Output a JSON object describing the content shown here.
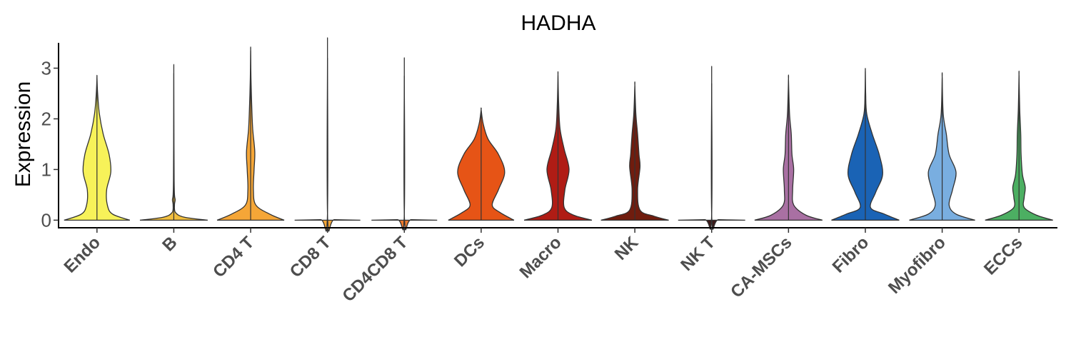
{
  "chart_data": {
    "type": "violin",
    "title": "HADHA",
    "xlabel": "",
    "ylabel": "Expression",
    "ylim": [
      -0.15,
      3.5
    ],
    "yticks": [
      0,
      1,
      2,
      3
    ],
    "grid": false,
    "legend": "none",
    "categories": [
      "Endo",
      "B",
      "CD4 T",
      "CD8 T",
      "CD4CD8 T",
      "DCs",
      "Macro",
      "NK",
      "NK T",
      "CA-MSCs",
      "Fibro",
      "Myofibro",
      "ECCs"
    ],
    "series": [
      {
        "category": "Endo",
        "color": "#f7f259",
        "max": 2.82,
        "density": [
          [
            0,
            0.95
          ],
          [
            0.12,
            0.45
          ],
          [
            0.3,
            0.3
          ],
          [
            0.6,
            0.28
          ],
          [
            0.95,
            0.4
          ],
          [
            1.3,
            0.35
          ],
          [
            1.7,
            0.18
          ],
          [
            2.1,
            0.07
          ],
          [
            2.5,
            0.02
          ],
          [
            2.82,
            0.0
          ]
        ]
      },
      {
        "category": "B",
        "color": "#f2bf3f",
        "max": 2.9,
        "density": [
          [
            0,
            0.98
          ],
          [
            0.06,
            0.3
          ],
          [
            0.15,
            0.05
          ],
          [
            0.3,
            0.02
          ],
          [
            0.4,
            0.04
          ],
          [
            0.5,
            0.02
          ],
          [
            0.8,
            0.01
          ],
          [
            1.5,
            0.005
          ],
          [
            2.9,
            0.0
          ]
        ]
      },
      {
        "category": "CD4 T",
        "color": "#f5a637",
        "max": 3.35,
        "density": [
          [
            0,
            0.97
          ],
          [
            0.12,
            0.55
          ],
          [
            0.3,
            0.15
          ],
          [
            0.6,
            0.08
          ],
          [
            1.0,
            0.1
          ],
          [
            1.35,
            0.12
          ],
          [
            1.8,
            0.06
          ],
          [
            2.3,
            0.03
          ],
          [
            2.8,
            0.01
          ],
          [
            3.35,
            0.0
          ]
        ]
      },
      {
        "category": "CD8 T",
        "color": "#f5a637",
        "max": 3.2,
        "density": [
          [
            0,
            0.95
          ],
          [
            0.01,
            0.2
          ],
          [
            0.02,
            0.005
          ],
          [
            3.2,
            0.0
          ]
        ]
      },
      {
        "category": "CD4CD8 T",
        "color": "#ee7a2c",
        "max": 2.85,
        "density": [
          [
            0,
            0.95
          ],
          [
            0.01,
            0.2
          ],
          [
            0.02,
            0.005
          ],
          [
            2.85,
            0.0
          ]
        ]
      },
      {
        "category": "DCs",
        "color": "#e65416",
        "max": 2.18,
        "density": [
          [
            0,
            0.95
          ],
          [
            0.15,
            0.55
          ],
          [
            0.3,
            0.32
          ],
          [
            0.6,
            0.5
          ],
          [
            0.95,
            0.68
          ],
          [
            1.3,
            0.5
          ],
          [
            1.6,
            0.2
          ],
          [
            1.9,
            0.06
          ],
          [
            2.18,
            0.0
          ]
        ]
      },
      {
        "category": "Macro",
        "color": "#b01c15",
        "max": 2.86,
        "density": [
          [
            0,
            0.98
          ],
          [
            0.1,
            0.45
          ],
          [
            0.25,
            0.18
          ],
          [
            0.6,
            0.2
          ],
          [
            1.0,
            0.32
          ],
          [
            1.4,
            0.18
          ],
          [
            1.8,
            0.06
          ],
          [
            2.3,
            0.02
          ],
          [
            2.86,
            0.0
          ]
        ]
      },
      {
        "category": "NK",
        "color": "#701c0e",
        "max": 2.66,
        "density": [
          [
            0,
            0.98
          ],
          [
            0.08,
            0.55
          ],
          [
            0.2,
            0.15
          ],
          [
            0.6,
            0.08
          ],
          [
            1.05,
            0.15
          ],
          [
            1.3,
            0.12
          ],
          [
            1.7,
            0.08
          ],
          [
            2.1,
            0.03
          ],
          [
            2.66,
            0.0
          ]
        ]
      },
      {
        "category": "NK T",
        "color": "#3d1a1a",
        "max": 2.7,
        "density": [
          [
            0,
            0.97
          ],
          [
            0.01,
            0.2
          ],
          [
            0.02,
            0.005
          ],
          [
            2.7,
            0.0
          ]
        ]
      },
      {
        "category": "CA-MSCs",
        "color": "#a970a3",
        "max": 2.78,
        "density": [
          [
            0,
            0.98
          ],
          [
            0.1,
            0.5
          ],
          [
            0.3,
            0.15
          ],
          [
            0.6,
            0.12
          ],
          [
            1.0,
            0.15
          ],
          [
            1.3,
            0.1
          ],
          [
            1.7,
            0.08
          ],
          [
            2.1,
            0.03
          ],
          [
            2.78,
            0.0
          ]
        ]
      },
      {
        "category": "Fibro",
        "color": "#1a63b5",
        "max": 2.94,
        "density": [
          [
            0,
            0.98
          ],
          [
            0.12,
            0.55
          ],
          [
            0.25,
            0.15
          ],
          [
            0.55,
            0.3
          ],
          [
            0.9,
            0.5
          ],
          [
            1.3,
            0.4
          ],
          [
            1.7,
            0.2
          ],
          [
            2.1,
            0.04
          ],
          [
            2.5,
            0.01
          ],
          [
            2.94,
            0.0
          ]
        ]
      },
      {
        "category": "Myofibro",
        "color": "#79aee0",
        "max": 2.82,
        "density": [
          [
            0,
            0.95
          ],
          [
            0.12,
            0.4
          ],
          [
            0.3,
            0.2
          ],
          [
            0.6,
            0.3
          ],
          [
            0.95,
            0.4
          ],
          [
            1.3,
            0.2
          ],
          [
            1.7,
            0.12
          ],
          [
            2.1,
            0.03
          ],
          [
            2.82,
            0.0
          ]
        ]
      },
      {
        "category": "ECCs",
        "color": "#4caf62",
        "max": 2.86,
        "density": [
          [
            0,
            0.98
          ],
          [
            0.1,
            0.5
          ],
          [
            0.25,
            0.15
          ],
          [
            0.45,
            0.15
          ],
          [
            0.65,
            0.18
          ],
          [
            0.9,
            0.1
          ],
          [
            1.3,
            0.06
          ],
          [
            1.7,
            0.05
          ],
          [
            2.2,
            0.02
          ],
          [
            2.86,
            0.0
          ]
        ]
      }
    ]
  }
}
